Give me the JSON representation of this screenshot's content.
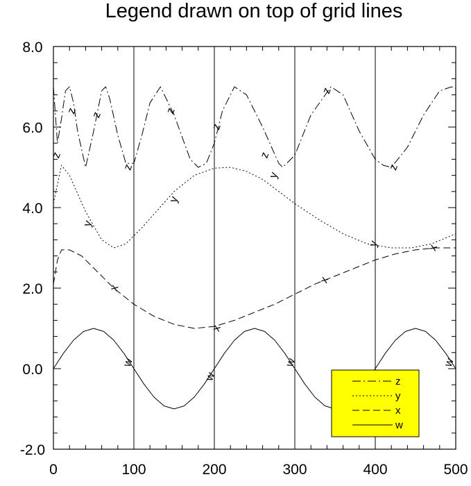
{
  "chart_data": {
    "type": "line",
    "title": "Legend drawn on top of grid lines",
    "xlabel": "",
    "ylabel": "",
    "xlim": [
      0,
      500
    ],
    "ylim": [
      -2.0,
      8.0
    ],
    "xticks": [
      0,
      100,
      200,
      300,
      400,
      500
    ],
    "xtick_labels": [
      "0",
      "100",
      "200",
      "300",
      "400",
      "500"
    ],
    "yticks": [
      -2.0,
      0.0,
      2.0,
      4.0,
      6.0,
      8.0
    ],
    "ytick_labels": [
      "-2.0",
      "0.0",
      "2.0",
      "4.0",
      "6.0",
      "8.0"
    ],
    "grid": "vertical lines at major x ticks",
    "legend": {
      "position": "bottom-right",
      "background": "#ffff00",
      "entries": [
        "z",
        "y",
        "x",
        "w"
      ]
    },
    "series": [
      {
        "name": "z",
        "dash": "dash-dot",
        "x": [
          0,
          5,
          10,
          15,
          20,
          25,
          30,
          40,
          50,
          60,
          65,
          70,
          80,
          90,
          100,
          110,
          120,
          133,
          150,
          170,
          180,
          190,
          200,
          210,
          225,
          240,
          260,
          280,
          285,
          300,
          320,
          345,
          360,
          380,
          400,
          410,
          420,
          440,
          460,
          480,
          495,
          500
        ],
        "y": [
          7.0,
          5.6,
          6.2,
          6.9,
          7.0,
          6.6,
          5.9,
          5.0,
          5.9,
          6.9,
          7.0,
          6.7,
          5.8,
          5.1,
          5.1,
          5.8,
          6.6,
          7.0,
          6.3,
          5.2,
          5.0,
          5.1,
          5.6,
          6.4,
          7.0,
          6.8,
          6.0,
          5.1,
          5.0,
          5.3,
          6.3,
          7.0,
          6.8,
          5.9,
          5.2,
          5.05,
          5.0,
          5.5,
          6.3,
          6.9,
          7.0,
          6.95
        ],
        "labels": [
          [
            4,
            5.3
          ],
          [
            23,
            6.4
          ],
          [
            54,
            6.3
          ],
          [
            93,
            5.0
          ],
          [
            146,
            6.4
          ],
          [
            203,
            6.0
          ],
          [
            263,
            5.3
          ],
          [
            340,
            6.9
          ],
          [
            423,
            5.0
          ]
        ]
      },
      {
        "name": "y",
        "dash": "dotted",
        "x": [
          0,
          10,
          20,
          40,
          60,
          75,
          90,
          110,
          130,
          150,
          175,
          200,
          220,
          240,
          260,
          280,
          300,
          330,
          360,
          390,
          420,
          445,
          470,
          500
        ],
        "y": [
          4.1,
          5.05,
          4.8,
          3.9,
          3.2,
          3.0,
          3.1,
          3.5,
          3.95,
          4.4,
          4.8,
          4.98,
          5.0,
          4.9,
          4.7,
          4.4,
          4.1,
          3.7,
          3.35,
          3.1,
          3.0,
          3.0,
          3.1,
          3.35
        ],
        "labels": [
          [
            43,
            3.6
          ],
          [
            150,
            4.2
          ],
          [
            274,
            4.8
          ],
          [
            398,
            3.1
          ]
        ]
      },
      {
        "name": "x",
        "dash": "dashed",
        "x": [
          0,
          5,
          10,
          20,
          35,
          50,
          75,
          100,
          125,
          150,
          175,
          200,
          225,
          250,
          275,
          300,
          325,
          350,
          375,
          400,
          425,
          450,
          475,
          500
        ],
        "y": [
          2.1,
          2.7,
          2.95,
          2.95,
          2.8,
          2.5,
          2.0,
          1.6,
          1.3,
          1.1,
          1.0,
          1.05,
          1.2,
          1.4,
          1.6,
          1.85,
          2.1,
          2.3,
          2.5,
          2.7,
          2.85,
          2.95,
          3.0,
          3.0
        ],
        "labels": [
          [
            76,
            2.0
          ],
          [
            203,
            1.0
          ],
          [
            337,
            2.2
          ],
          [
            472,
            3.0
          ]
        ]
      },
      {
        "name": "w",
        "dash": "solid",
        "x": [
          0,
          12.5,
          25,
          37.5,
          50,
          62.5,
          75,
          87.5,
          100,
          112.5,
          125,
          137.5,
          150,
          162.5,
          175,
          187.5,
          200,
          212.5,
          225,
          237.5,
          250,
          262.5,
          275,
          287.5,
          300,
          312.5,
          325,
          337.5,
          350,
          362.5,
          375,
          387.5,
          400,
          412.5,
          425,
          437.5,
          450,
          462.5,
          475,
          487.5,
          500
        ],
        "y": [
          0.0,
          0.383,
          0.707,
          0.924,
          1.0,
          0.924,
          0.707,
          0.383,
          0.0,
          -0.383,
          -0.707,
          -0.924,
          -1.0,
          -0.924,
          -0.707,
          -0.383,
          0.0,
          0.383,
          0.707,
          0.924,
          1.0,
          0.924,
          0.707,
          0.383,
          0.0,
          -0.383,
          -0.707,
          -0.924,
          -1.0,
          -0.924,
          -0.707,
          -0.383,
          0.0,
          0.383,
          0.707,
          0.924,
          1.0,
          0.924,
          0.707,
          0.383,
          0.0
        ],
        "labels": [
          [
            93,
            0.15
          ],
          [
            195,
            -0.2
          ],
          [
            295,
            0.15
          ],
          [
            492,
            0.15
          ]
        ]
      }
    ]
  },
  "colors": {
    "legend_background": "#ffff00",
    "line": "#000000"
  }
}
